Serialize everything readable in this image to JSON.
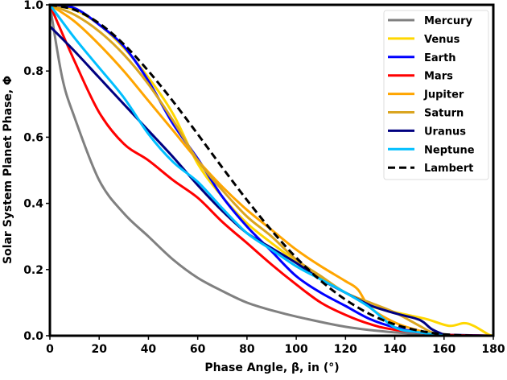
{
  "chart_data": {
    "type": "line",
    "title": "",
    "xlabel": "Phase Angle, β, in (°)",
    "ylabel": "Solar System Planet Phase, Φ",
    "xlim": [
      0,
      180
    ],
    "ylim": [
      0,
      1.0
    ],
    "xticks": [
      "0",
      "20",
      "40",
      "60",
      "80",
      "100",
      "120",
      "140",
      "160",
      "180"
    ],
    "yticks": [
      "0.0",
      "0.2",
      "0.4",
      "0.6",
      "0.8",
      "1.0"
    ],
    "grid": false,
    "legend_position": "top-right",
    "series": [
      {
        "name": "Mercury",
        "color": "#808080",
        "dash": false,
        "x": [
          0,
          5,
          10,
          20,
          30,
          40,
          50,
          60,
          70,
          80,
          90,
          100,
          120,
          140,
          160,
          180
        ],
        "y": [
          1.0,
          0.78,
          0.66,
          0.47,
          0.37,
          0.3,
          0.23,
          0.175,
          0.135,
          0.1,
          0.077,
          0.058,
          0.027,
          0.01,
          0.003,
          0.0
        ]
      },
      {
        "name": "Venus",
        "color": "#FFD700",
        "dash": false,
        "x": [
          0,
          10,
          20,
          30,
          40,
          50,
          60,
          70,
          80,
          90,
          100,
          110,
          120,
          131,
          142,
          153,
          162,
          168,
          172,
          178,
          180
        ],
        "y": [
          1.0,
          0.985,
          0.94,
          0.87,
          0.78,
          0.67,
          0.52,
          0.42,
          0.34,
          0.28,
          0.225,
          0.175,
          0.13,
          0.088,
          0.068,
          0.05,
          0.03,
          0.038,
          0.03,
          0.004,
          0.0
        ]
      },
      {
        "name": "Earth",
        "color": "#0000FF",
        "dash": false,
        "x": [
          0,
          10,
          20,
          30,
          40,
          50,
          60,
          70,
          80,
          90,
          100,
          110,
          120,
          130,
          140,
          150,
          160,
          180
        ],
        "y": [
          1.0,
          0.99,
          0.94,
          0.875,
          0.77,
          0.64,
          0.535,
          0.42,
          0.33,
          0.255,
          0.18,
          0.13,
          0.09,
          0.05,
          0.025,
          0.01,
          0.003,
          0.0
        ]
      },
      {
        "name": "Mars",
        "color": "#FF0000",
        "dash": false,
        "x": [
          0,
          10,
          20,
          30,
          40,
          50,
          60,
          70,
          80,
          90,
          100,
          110,
          120,
          130,
          140,
          160,
          180
        ],
        "y": [
          1.0,
          0.83,
          0.675,
          0.58,
          0.53,
          0.47,
          0.417,
          0.344,
          0.28,
          0.215,
          0.155,
          0.1,
          0.063,
          0.035,
          0.018,
          0.003,
          0.0
        ]
      },
      {
        "name": "Jupiter",
        "color": "#FFA500",
        "dash": false,
        "x": [
          0,
          10,
          20,
          30,
          40,
          50,
          60,
          70,
          80,
          90,
          100,
          110,
          120,
          125,
          130,
          140,
          150,
          160
        ],
        "y": [
          1.0,
          0.95,
          0.88,
          0.8,
          0.71,
          0.62,
          0.53,
          0.45,
          0.38,
          0.32,
          0.26,
          0.21,
          0.165,
          0.14,
          0.085,
          0.04,
          0.015,
          0.0
        ]
      },
      {
        "name": "Saturn",
        "color": "#DAA520",
        "dash": false,
        "x": [
          0,
          10,
          20,
          30,
          40,
          50,
          60,
          70,
          80,
          90,
          100,
          110,
          120,
          130,
          140,
          150,
          155,
          160
        ],
        "y": [
          1.0,
          0.97,
          0.92,
          0.85,
          0.76,
          0.65,
          0.53,
          0.44,
          0.36,
          0.3,
          0.23,
          0.18,
          0.13,
          0.1,
          0.07,
          0.03,
          0.01,
          0.0
        ]
      },
      {
        "name": "Uranus",
        "color": "#000080",
        "dash": false,
        "x": [
          0,
          10,
          20,
          30,
          40,
          50,
          60,
          70,
          80,
          90,
          100,
          110,
          120,
          130,
          140,
          150,
          155,
          160
        ],
        "y": [
          0.935,
          0.86,
          0.78,
          0.7,
          0.62,
          0.54,
          0.455,
          0.377,
          0.31,
          0.265,
          0.22,
          0.17,
          0.13,
          0.092,
          0.068,
          0.048,
          0.02,
          0.003
        ]
      },
      {
        "name": "Neptune",
        "color": "#00BFFF",
        "dash": false,
        "x": [
          0,
          10,
          20,
          30,
          40,
          50,
          60,
          70,
          80,
          90,
          100,
          110,
          120,
          130,
          140,
          150,
          160
        ],
        "y": [
          1.0,
          0.9,
          0.81,
          0.72,
          0.61,
          0.525,
          0.465,
          0.385,
          0.31,
          0.26,
          0.21,
          0.17,
          0.13,
          0.085,
          0.025,
          0.01,
          0.0
        ]
      },
      {
        "name": "Lambert",
        "color": "#000000",
        "dash": true,
        "x": [
          0,
          10,
          20,
          30,
          40,
          50,
          60,
          70,
          80,
          90,
          100,
          110,
          120,
          130,
          140,
          150,
          160,
          170,
          180
        ],
        "y": [
          1.0,
          0.985,
          0.944,
          0.881,
          0.8,
          0.708,
          0.609,
          0.508,
          0.41,
          0.318,
          0.236,
          0.166,
          0.109,
          0.065,
          0.034,
          0.015,
          0.0045,
          0.0005,
          0.0
        ]
      }
    ]
  }
}
